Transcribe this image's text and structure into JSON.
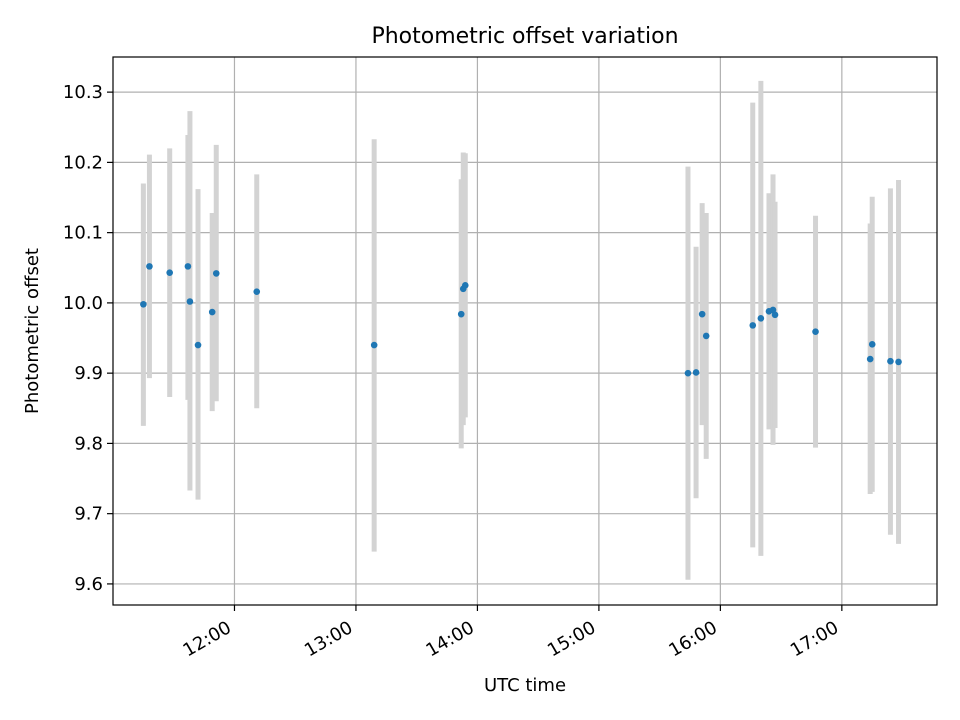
{
  "chart_data": {
    "type": "scatter",
    "title": "Photometric offset variation",
    "xlabel": "UTC time",
    "ylabel": "Photometric offset",
    "x_unit": "UTC time (hh:mm)",
    "xlim": [
      "11:00",
      "17:47"
    ],
    "ylim": [
      9.57,
      10.35
    ],
    "grid": true,
    "x_ticks": [
      "12:00",
      "13:00",
      "14:00",
      "15:00",
      "16:00",
      "17:00"
    ],
    "y_ticks": [
      "9.6",
      "9.7",
      "9.8",
      "9.9",
      "10.0",
      "10.1",
      "10.2",
      "10.3"
    ],
    "colors": {
      "point": "#1f77b4",
      "errorbar": "#d3d3d3",
      "grid": "#b0b0b0"
    },
    "series": [
      {
        "points": [
          {
            "x": "11:15",
            "y": 9.998,
            "y_low": 9.825,
            "y_high": 10.17
          },
          {
            "x": "11:18",
            "y": 10.052,
            "y_low": 9.893,
            "y_high": 10.211
          },
          {
            "x": "11:28",
            "y": 10.043,
            "y_low": 9.866,
            "y_high": 10.22
          },
          {
            "x": "11:37",
            "y": 10.052,
            "y_low": 9.862,
            "y_high": 10.239
          },
          {
            "x": "11:38",
            "y": 10.002,
            "y_low": 9.733,
            "y_high": 10.273
          },
          {
            "x": "11:42",
            "y": 9.94,
            "y_low": 9.72,
            "y_high": 10.162
          },
          {
            "x": "11:49",
            "y": 9.987,
            "y_low": 9.846,
            "y_high": 10.128
          },
          {
            "x": "11:51",
            "y": 10.042,
            "y_low": 9.86,
            "y_high": 10.225
          },
          {
            "x": "12:11",
            "y": 10.016,
            "y_low": 9.85,
            "y_high": 10.183
          },
          {
            "x": "13:09",
            "y": 9.94,
            "y_low": 9.646,
            "y_high": 10.233
          },
          {
            "x": "13:52",
            "y": 9.984,
            "y_low": 9.793,
            "y_high": 10.176
          },
          {
            "x": "13:53",
            "y": 10.02,
            "y_low": 9.826,
            "y_high": 10.214
          },
          {
            "x": "13:54",
            "y": 10.025,
            "y_low": 9.837,
            "y_high": 10.213
          },
          {
            "x": "15:44",
            "y": 9.9,
            "y_low": 9.606,
            "y_high": 10.194
          },
          {
            "x": "15:48",
            "y": 9.901,
            "y_low": 9.722,
            "y_high": 10.08
          },
          {
            "x": "15:51",
            "y": 9.984,
            "y_low": 9.826,
            "y_high": 10.142
          },
          {
            "x": "15:53",
            "y": 9.953,
            "y_low": 9.778,
            "y_high": 10.128
          },
          {
            "x": "16:16",
            "y": 9.968,
            "y_low": 9.652,
            "y_high": 10.285
          },
          {
            "x": "16:20",
            "y": 9.978,
            "y_low": 9.64,
            "y_high": 10.316
          },
          {
            "x": "16:24",
            "y": 9.988,
            "y_low": 9.82,
            "y_high": 10.156
          },
          {
            "x": "16:26",
            "y": 9.99,
            "y_low": 9.798,
            "y_high": 10.183
          },
          {
            "x": "16:27",
            "y": 9.983,
            "y_low": 9.822,
            "y_high": 10.144
          },
          {
            "x": "16:47",
            "y": 9.959,
            "y_low": 9.794,
            "y_high": 10.124
          },
          {
            "x": "17:14",
            "y": 9.92,
            "y_low": 9.728,
            "y_high": 10.113
          },
          {
            "x": "17:15",
            "y": 9.941,
            "y_low": 9.731,
            "y_high": 10.151
          },
          {
            "x": "17:24",
            "y": 9.917,
            "y_low": 9.67,
            "y_high": 10.163
          },
          {
            "x": "17:28",
            "y": 9.916,
            "y_low": 9.657,
            "y_high": 10.175
          }
        ]
      }
    ]
  }
}
